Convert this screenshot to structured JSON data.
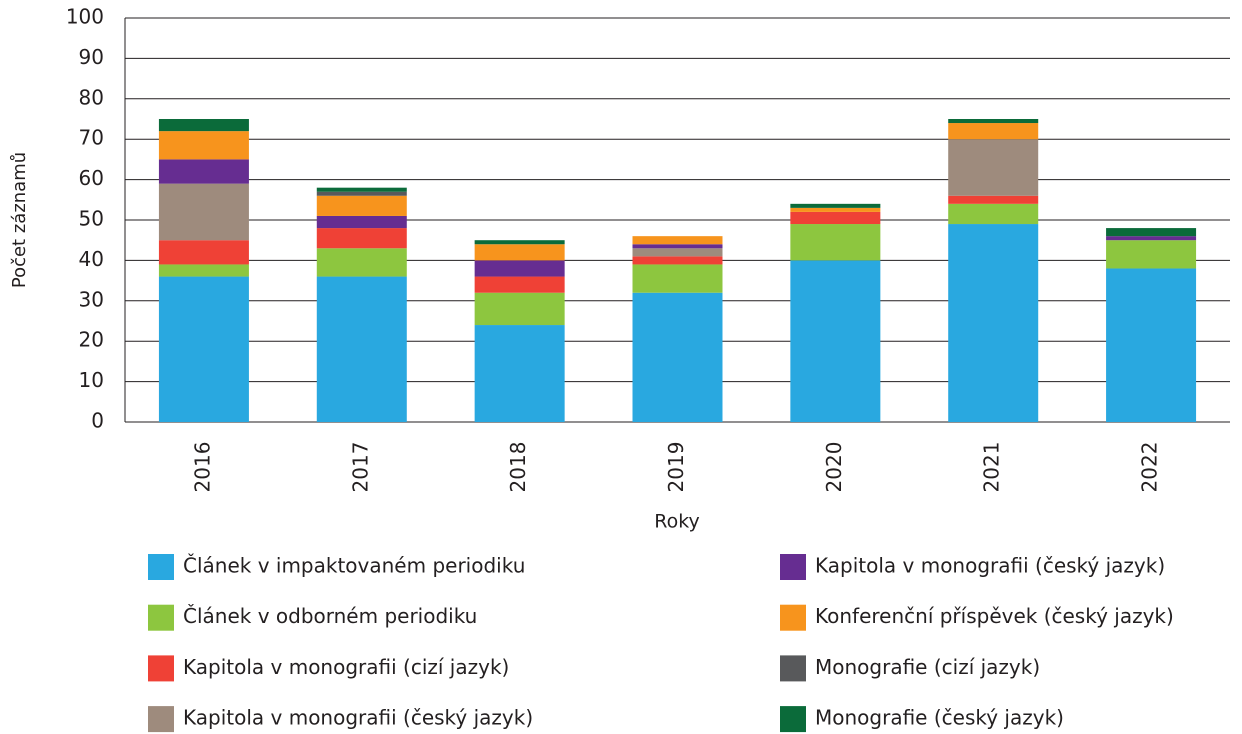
{
  "chart_data": {
    "type": "bar",
    "stacked": true,
    "xlabel": "Roky",
    "ylabel": "Počet záznamů",
    "categories": [
      "2016",
      "2017",
      "2018",
      "2019",
      "2020",
      "2021",
      "2022"
    ],
    "series": [
      {
        "name": "Článek v impaktovaném periodiku",
        "color": "#29a8e0",
        "values": [
          36,
          36,
          24,
          32,
          40,
          49,
          38
        ]
      },
      {
        "name": "Článek v odborném periodiku",
        "color": "#8dc63f",
        "values": [
          3,
          7,
          8,
          7,
          9,
          5,
          7
        ]
      },
      {
        "name": "Kapitola v monografii (cizí jazyk)",
        "color": "#ef4136",
        "values": [
          6,
          5,
          4,
          2,
          3,
          2,
          0
        ]
      },
      {
        "name": "Kapitola v monografii (český jazyk)",
        "color": "#9e8b7d",
        "values": [
          14,
          0,
          0,
          2,
          0,
          14,
          0
        ]
      },
      {
        "name": "Kapitola v monografii (český jazyk)",
        "color": "#662d91",
        "values": [
          6,
          3,
          4,
          1,
          0,
          0,
          1
        ]
      },
      {
        "name": "Konferenční příspěvek (český jazyk)",
        "color": "#f7941d",
        "values": [
          7,
          5,
          4,
          2,
          1,
          4,
          0
        ]
      },
      {
        "name": "Monografie (cizí jazyk)",
        "color": "#58595b",
        "values": [
          0,
          1,
          0,
          0,
          0,
          0,
          0
        ]
      },
      {
        "name": "Monografie (český jazyk)",
        "color": "#0b6b3a",
        "values": [
          3,
          1,
          1,
          0,
          1,
          1,
          2
        ]
      }
    ],
    "ylim": [
      0,
      100
    ],
    "yticks": [
      0,
      10,
      20,
      30,
      40,
      50,
      60,
      70,
      80,
      90,
      100
    ],
    "grid": true
  }
}
